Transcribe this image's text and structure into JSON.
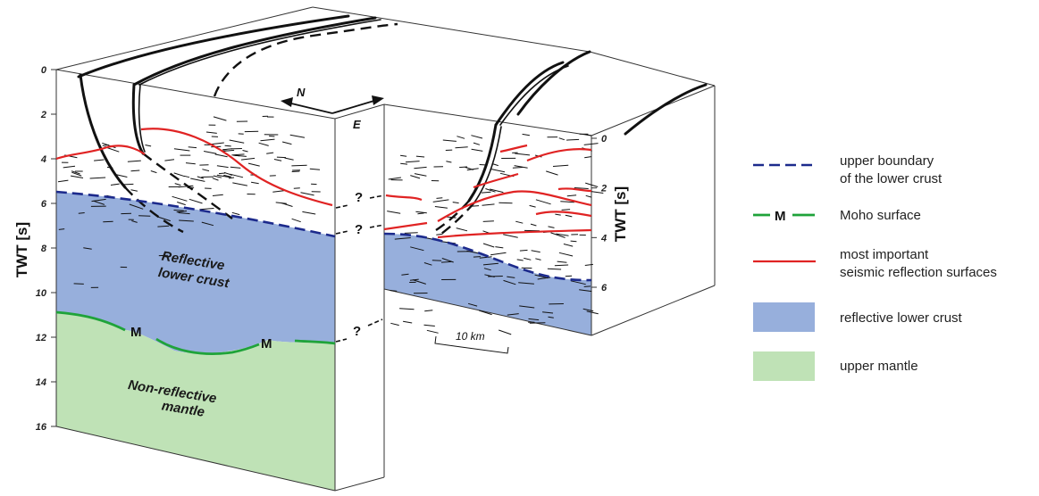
{
  "axis": {
    "left_title": "TWT [s]",
    "left_ticks": [
      "0",
      "2",
      "4",
      "6",
      "8",
      "10",
      "12",
      "14",
      "16"
    ],
    "right_title": "TWT [s]",
    "right_ticks": [
      "0",
      "2",
      "4",
      "6"
    ]
  },
  "labels": {
    "reflective_line1": "Reflective",
    "reflective_line2": "lower crust",
    "nonreflective_line1": "Non-reflective",
    "nonreflective_line2": "mantle",
    "moho_marker": "M",
    "question_mark": "?",
    "north": "N",
    "east": "E",
    "scale": "10 km"
  },
  "legend": {
    "upper_boundary_line1": "upper boundary",
    "upper_boundary_line2": "of the lower crust",
    "moho_marker": "M",
    "moho_label": "Moho surface",
    "reflection_line1": "most important",
    "reflection_line2": "seismic reflection surfaces",
    "lower_crust_label": "reflective lower crust",
    "mantle_label": "upper mantle"
  },
  "colors": {
    "lower_crust_fill": "#97afdc",
    "mantle_fill": "#bfe2b6",
    "boundary_dash": "#1c2a8c",
    "moho_line": "#1fa33a",
    "reflection_line": "#e02323"
  }
}
